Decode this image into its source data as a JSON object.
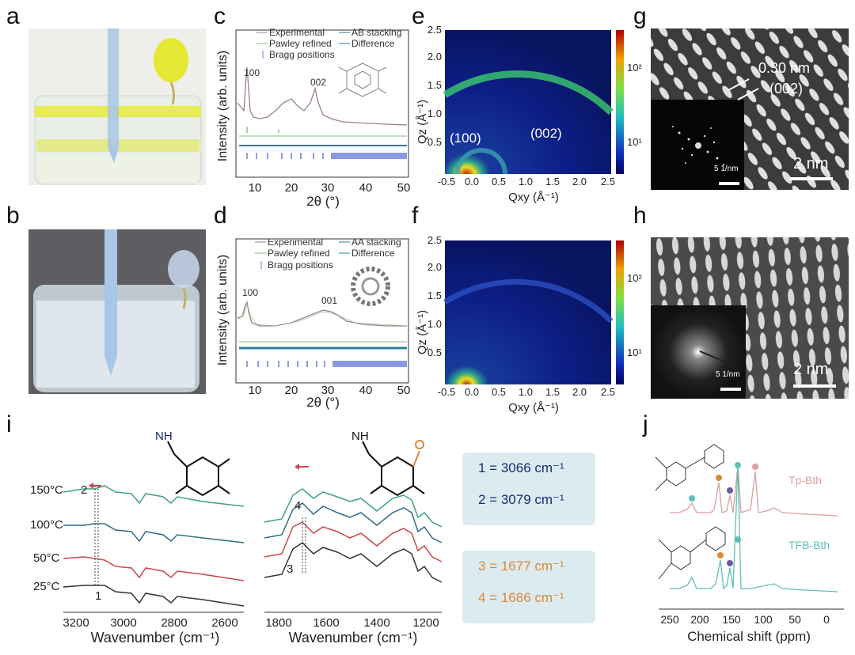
{
  "panel_labels": {
    "a": "a",
    "b": "b",
    "c": "c",
    "d": "d",
    "e": "e",
    "f": "f",
    "g": "g",
    "h": "h",
    "i": "i",
    "j": "j"
  },
  "colors": {
    "experimental": "#9a7f8c",
    "pawley": "#7fbf7f",
    "bragg": "#6b7fd6",
    "difference": "#2a7f9a",
    "ir_150": "#3fa37a",
    "ir_100": "#2f6b86",
    "ir_50": "#c94848",
    "ir_25": "#333333",
    "blue_text": "#1a2a7a",
    "orange_text": "#d98a3a",
    "tp_bth": "#d9a0a0",
    "tfb_bth": "#5fbfb7"
  },
  "panel_c": {
    "legend": [
      "Experimental",
      "AB stacking",
      "Pawley refined",
      "Difference",
      "Bragg positions"
    ],
    "peaks": [
      "100",
      "002"
    ],
    "ylabel": "Intensity (arb. units)",
    "xlabel": "2θ (°)",
    "xticks": [
      "10",
      "20",
      "30",
      "40",
      "50"
    ]
  },
  "panel_d": {
    "legend": [
      "Experimental",
      "AA stacking",
      "Pawley refined",
      "Difference",
      "Bragg positions"
    ],
    "peaks": [
      "100",
      "001"
    ],
    "ylabel": "Intensity (arb. units)",
    "xlabel": "2θ (°)",
    "xticks": [
      "10",
      "20",
      "30",
      "40",
      "50"
    ]
  },
  "panel_e": {
    "ylabel": "Qz (Å⁻¹)",
    "xlabel": "Qxy (Å⁻¹)",
    "yticks": [
      "0.5",
      "1.0",
      "1.5",
      "2.0",
      "2.5"
    ],
    "xticks": [
      "-0.5",
      "0.0",
      "0.5",
      "1.0",
      "1.5",
      "2.0",
      "2.5"
    ],
    "annotations": [
      "(100)",
      "(002)"
    ],
    "cbar": [
      "10²",
      "10¹"
    ]
  },
  "panel_f": {
    "ylabel": "Qz (Å⁻¹)",
    "xlabel": "Qxy (Å⁻¹)",
    "yticks": [
      "0.5",
      "1.0",
      "1.5",
      "2.0",
      "2.5"
    ],
    "xticks": [
      "-0.5",
      "0.0",
      "0.5",
      "1.0",
      "1.5",
      "2.0",
      "2.5"
    ],
    "cbar": [
      "10²",
      "10¹"
    ]
  },
  "panel_g": {
    "d_spacing": "0.30 nm",
    "plane": "(002)",
    "fft_scale": "5 1/nm",
    "scale": "2 nm"
  },
  "panel_h": {
    "fft_scale": "5 1/nm",
    "scale": "2 nm"
  },
  "panel_i": {
    "temps": [
      "150°C",
      "100°C",
      "50°C",
      "25°C"
    ],
    "markers": [
      "1",
      "2",
      "3",
      "4"
    ],
    "left_xticks": [
      "3200",
      "3000",
      "2800",
      "2600"
    ],
    "right_xticks": [
      "1800",
      "1600",
      "1400",
      "1200"
    ],
    "xlabel": "Wavenumber (cm⁻¹)",
    "mol_label_nh": "NH",
    "box1": [
      "1 = 3066 cm⁻¹",
      "2 = 3079 cm⁻¹"
    ],
    "box2": [
      "3 = 1677 cm⁻¹",
      "4 = 1686 cm⁻¹"
    ]
  },
  "panel_j": {
    "xticks": [
      "250",
      "200",
      "150",
      "100",
      "50",
      "0"
    ],
    "xlabel": "Chemical shift (ppm)",
    "series": [
      "Tp-Bth",
      "TFB-Bth"
    ]
  }
}
